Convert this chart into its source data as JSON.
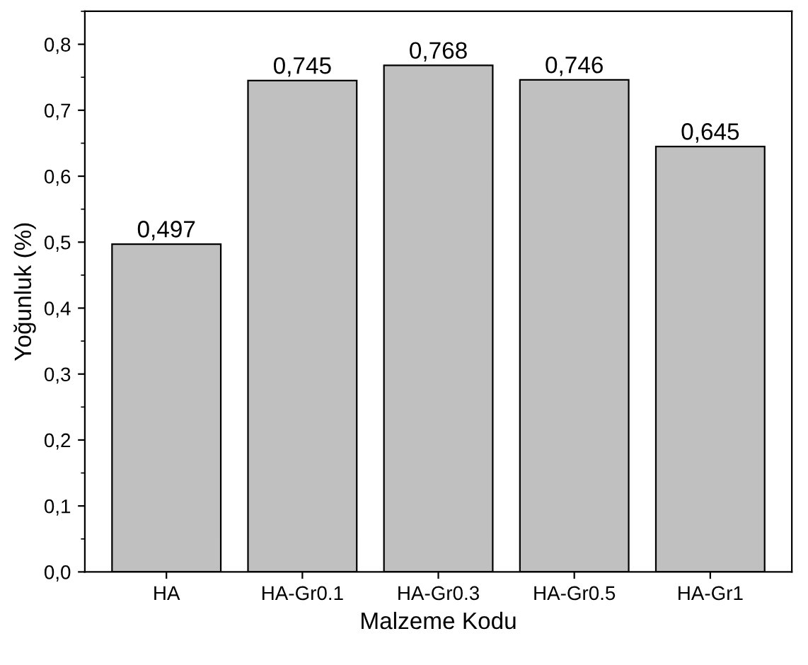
{
  "chart_data": {
    "type": "bar",
    "xlabel": "Malzeme Kodu",
    "ylabel": "Yoğunluk (%)",
    "categories": [
      "HA",
      "HA-Gr0.1",
      "HA-Gr0.3",
      "HA-Gr0.5",
      "HA-Gr1"
    ],
    "values": [
      0.497,
      0.745,
      0.768,
      0.746,
      0.645
    ],
    "value_labels": [
      "0,497",
      "0,745",
      "0,768",
      "0,746",
      "0,645"
    ],
    "color": "#c0c0c0",
    "ylim": [
      0,
      0.85
    ],
    "yticks": [
      {
        "value": 0,
        "label": "0,0"
      },
      {
        "value": 0.1,
        "label": "0,1"
      },
      {
        "value": 0.2,
        "label": "0,2"
      },
      {
        "value": 0.3,
        "label": "0,3"
      },
      {
        "value": 0.4,
        "label": "0,4"
      },
      {
        "value": 0.5,
        "label": "0,5"
      },
      {
        "value": 0.6,
        "label": "0,6"
      },
      {
        "value": 0.7,
        "label": "0,7"
      },
      {
        "value": 0.8,
        "label": "0,8"
      }
    ],
    "grid": false
  }
}
